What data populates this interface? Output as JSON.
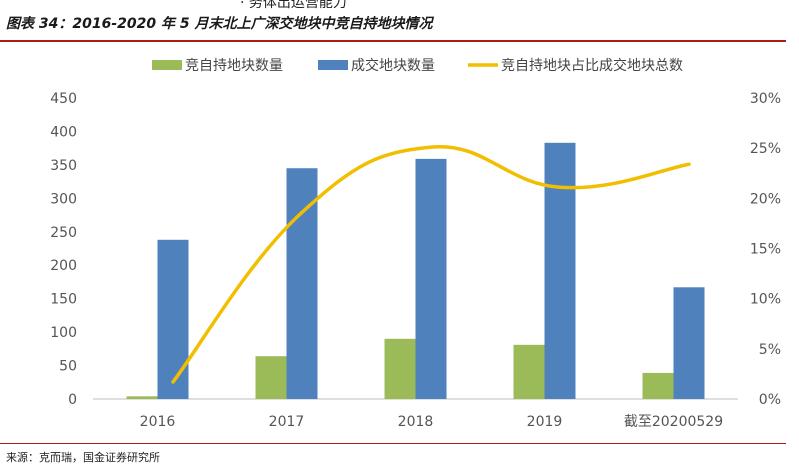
{
  "header": {
    "fragment": "· 务体出运营能力",
    "title": "图表 34：2016-2020 年 5 月末北上广深交地块中竞自持地块情况",
    "source": "来源：克而瑞，国金证券研究所"
  },
  "colors": {
    "green": "#9bbb59",
    "blue": "#4f81bd",
    "line": "#f2be00",
    "accent": "#b01a1a"
  },
  "chart_data": {
    "type": "bar",
    "categories": [
      "2016",
      "2017",
      "2018",
      "2019",
      "截至20200529"
    ],
    "series": [
      {
        "name": "竞自持地块数量",
        "type": "bar",
        "axis": "left",
        "values": [
          4,
          64,
          90,
          81,
          39
        ]
      },
      {
        "name": "成交地块数量",
        "type": "bar",
        "axis": "left",
        "values": [
          238,
          345,
          359,
          383,
          167
        ]
      },
      {
        "name": "竞自持地块占比成交地块总数",
        "type": "line",
        "axis": "right",
        "smooth": true,
        "values": [
          1.7,
          18.6,
          25.1,
          21.1,
          23.4
        ]
      }
    ],
    "y_left": {
      "ylim": [
        0,
        450
      ],
      "ticks": [
        "0",
        "50",
        "100",
        "150",
        "200",
        "250",
        "300",
        "350",
        "400",
        "450"
      ]
    },
    "y_right": {
      "ylim": [
        0,
        30
      ],
      "ticks": [
        "0%",
        "5%",
        "10%",
        "15%",
        "20%",
        "25%",
        "30%"
      ]
    },
    "legend_position": "top",
    "grid": false
  }
}
